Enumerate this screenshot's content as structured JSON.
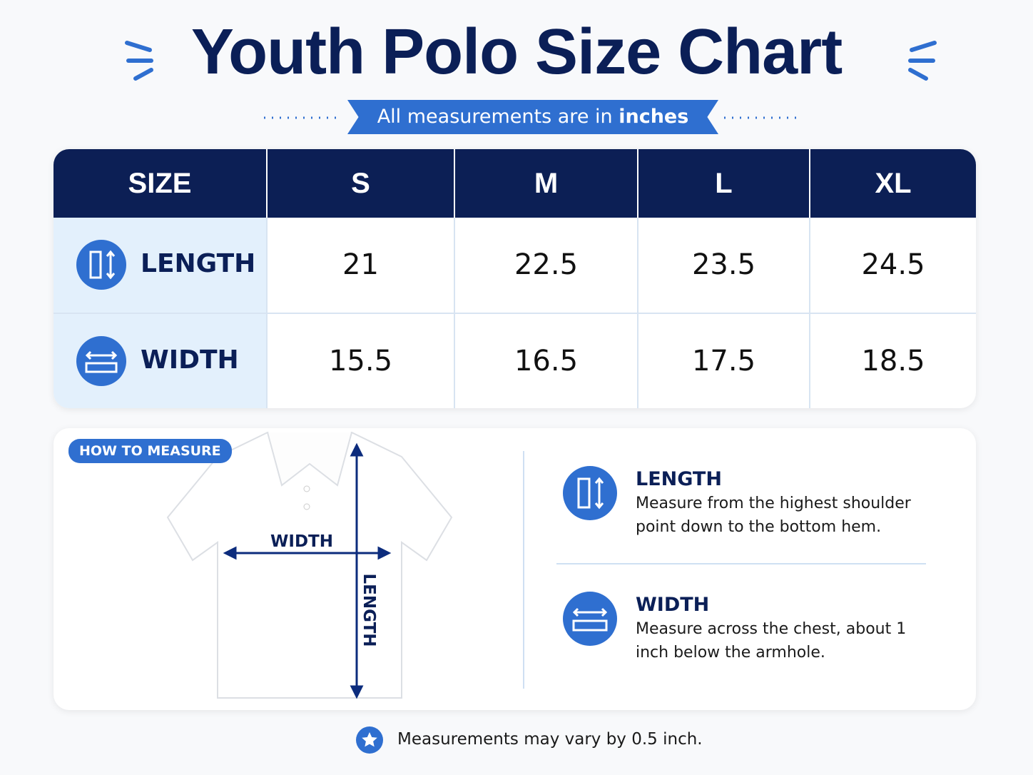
{
  "header": {
    "title": "Youth Polo Size Chart",
    "subtitle": {
      "text": "All measurements are in",
      "emphasis": "inches"
    }
  },
  "table": {
    "header": [
      "SIZE",
      "S",
      "M",
      "L",
      "XL"
    ],
    "rows": [
      [
        "LENGTH",
        21,
        22.5,
        23.5,
        24.5
      ],
      [
        "WIDTH",
        15.5,
        16.5,
        17.5,
        18.5
      ]
    ]
  },
  "guide": {
    "badge": "HOW TO MEASURE",
    "diagram_labels": {
      "width": "WIDTH",
      "length": "LENGTH"
    },
    "items": [
      {
        "title": "LENGTH",
        "text": "Measure from the highest shoulder point down to the bottom hem."
      },
      {
        "title": "WIDTH",
        "text": "Measure across the chest, about 1 inch below the armhole."
      }
    ]
  },
  "footnote": "Measurements may vary by 0.5 inch."
}
